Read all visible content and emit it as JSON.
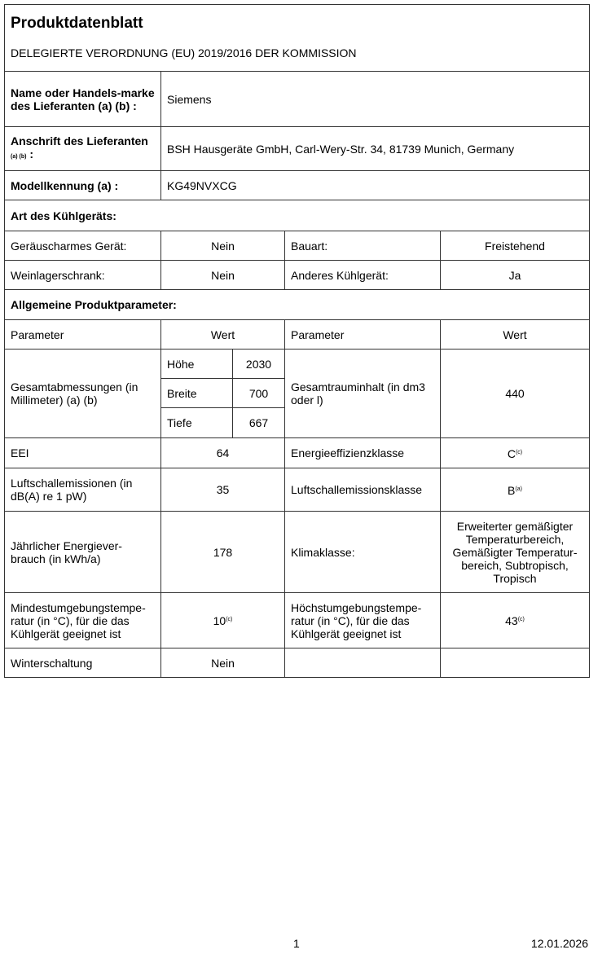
{
  "header": {
    "title": "Produktdatenblatt",
    "subtitle": "DELEGIERTE VERORDNUNG (EU) 2019/2016 DER KOMMISSION"
  },
  "supplier": {
    "name_label": "Name oder Handels-marke des Lieferanten (a) (b) :",
    "name_value": "Siemens",
    "address_label": "Anschrift des Lieferanten",
    "address_label_notes": "(a) (b)",
    "address_label_colon": ":",
    "address_value": "BSH Hausgeräte GmbH, Carl-Wery-Str. 34, 81739 Munich, Germany",
    "model_label": "Modellkennung (a) :",
    "model_value": "KG49NVXCG"
  },
  "appliance_type": {
    "heading": "Art des Kühlgeräts:",
    "rows": [
      {
        "l1": "Geräuscharmes Gerät:",
        "v1": "Nein",
        "l2": "Bauart:",
        "v2": "Freistehend"
      },
      {
        "l1": "Weinlagerschrank:",
        "v1": "Nein",
        "l2": "Anderes Kühlgerät:",
        "v2": "Ja"
      }
    ]
  },
  "general": {
    "heading": "Allgemeine Produktparameter:",
    "col_param": "Parameter",
    "col_value": "Wert",
    "dimensions_label": "Gesamtabmessungen (in Millimeter) (a) (b)",
    "dimensions": [
      {
        "label": "Höhe",
        "value": "2030"
      },
      {
        "label": "Breite",
        "value": "700"
      },
      {
        "label": "Tiefe",
        "value": "667"
      }
    ],
    "volume_label": "Gesamtrauminhalt (in dm3 oder l)",
    "volume_value": "440",
    "eei_label": "EEI",
    "eei_value": "64",
    "energy_class_label": "Energieeffizienzklasse",
    "energy_class_value": "C",
    "energy_class_note": "(c)",
    "noise_label": "Luftschallemissionen (in dB(A) re 1 pW)",
    "noise_value": "35",
    "noise_class_label": "Luftschallemissionsklasse",
    "noise_class_value": "B",
    "noise_class_note": "(a)",
    "energy_label": "Jährlicher Energiever-brauch (in kWh/a)",
    "energy_value": "178",
    "climate_label": "Klimaklasse:",
    "climate_value": "Erweiterter gemäßigter Temperaturbereich, Gemäßigter Temperatur-bereich, Subtropisch, Tropisch",
    "min_temp_label": "Mindestumgebungstempe-ratur (in °C), für die das Kühlgerät geeignet ist",
    "min_temp_value": "10",
    "min_temp_note": "(c)",
    "max_temp_label": "Höchstumgebungstempe-ratur (in °C), für die das Kühlgerät geeignet ist",
    "max_temp_value": "43",
    "max_temp_note": "(c)",
    "winter_label": "Winterschaltung",
    "winter_value": "Nein"
  },
  "footer": {
    "page": "1",
    "date": "12.01.2026"
  }
}
